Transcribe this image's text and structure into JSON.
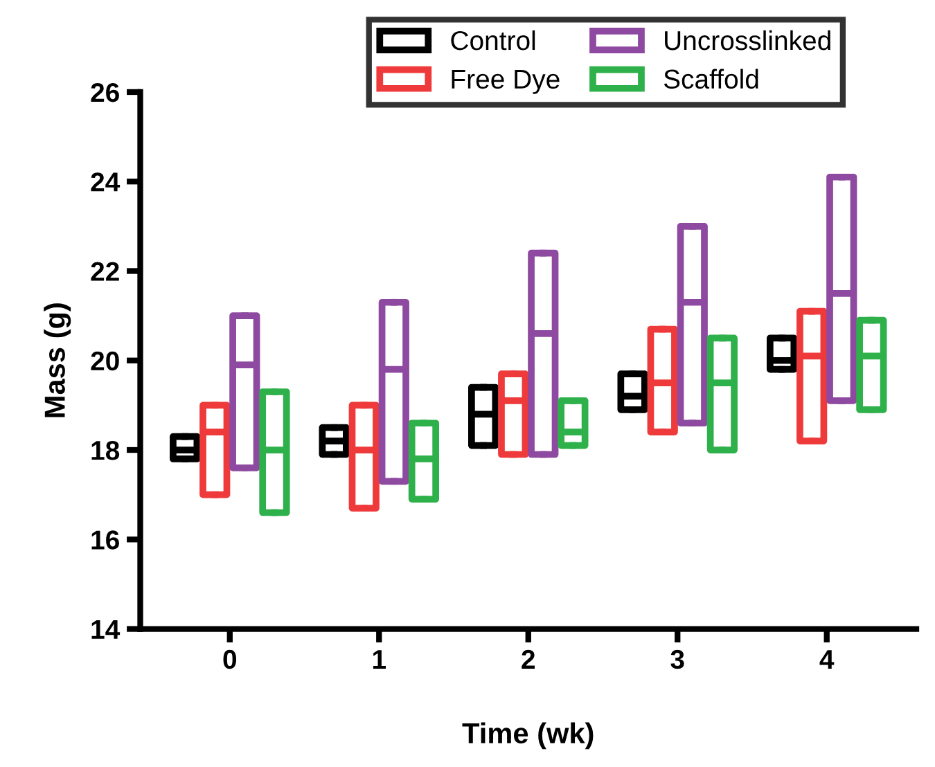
{
  "chart_data": {
    "type": "box",
    "xlabel": "Time (wk)",
    "ylabel": "Mass (g)",
    "categories": [
      "0",
      "1",
      "2",
      "3",
      "4"
    ],
    "ylim": [
      14,
      26
    ],
    "yticks": [
      14,
      16,
      18,
      20,
      22,
      24,
      26
    ],
    "grid": false,
    "legend": "top",
    "series": [
      {
        "name": "Control",
        "color": "#000000",
        "boxes": [
          {
            "low": 17.8,
            "q1": 17.8,
            "median": 18.0,
            "q3": 18.3,
            "high": 18.3
          },
          {
            "low": 17.9,
            "q1": 17.9,
            "median": 18.2,
            "q3": 18.5,
            "high": 18.5
          },
          {
            "low": 18.1,
            "q1": 18.1,
            "median": 18.8,
            "q3": 19.4,
            "high": 19.4
          },
          {
            "low": 18.9,
            "q1": 18.9,
            "median": 19.2,
            "q3": 19.7,
            "high": 19.7
          },
          {
            "low": 19.8,
            "q1": 19.8,
            "median": 20.0,
            "q3": 20.5,
            "high": 20.5
          }
        ]
      },
      {
        "name": "Free Dye",
        "color": "#ee3a3a",
        "boxes": [
          {
            "low": 17.0,
            "q1": 17.0,
            "median": 18.4,
            "q3": 19.0,
            "high": 19.0
          },
          {
            "low": 16.7,
            "q1": 16.7,
            "median": 18.0,
            "q3": 19.0,
            "high": 19.0
          },
          {
            "low": 17.9,
            "q1": 17.9,
            "median": 19.1,
            "q3": 19.7,
            "high": 19.7
          },
          {
            "low": 18.4,
            "q1": 18.4,
            "median": 19.5,
            "q3": 20.7,
            "high": 20.7
          },
          {
            "low": 18.2,
            "q1": 18.2,
            "median": 20.1,
            "q3": 21.1,
            "high": 21.1
          }
        ]
      },
      {
        "name": "Uncrosslinked",
        "color": "#8e4aa0",
        "boxes": [
          {
            "low": 17.6,
            "q1": 17.6,
            "median": 19.9,
            "q3": 21.0,
            "high": 21.0
          },
          {
            "low": 17.3,
            "q1": 17.3,
            "median": 19.8,
            "q3": 21.3,
            "high": 21.3
          },
          {
            "low": 17.9,
            "q1": 17.9,
            "median": 20.6,
            "q3": 22.4,
            "high": 22.4
          },
          {
            "low": 18.6,
            "q1": 18.6,
            "median": 21.3,
            "q3": 23.0,
            "high": 23.0
          },
          {
            "low": 19.1,
            "q1": 19.1,
            "median": 21.5,
            "q3": 24.1,
            "high": 24.1
          }
        ]
      },
      {
        "name": "Scaffold",
        "color": "#2eb04a",
        "boxes": [
          {
            "low": 16.6,
            "q1": 16.6,
            "median": 18.0,
            "q3": 19.3,
            "high": 19.3
          },
          {
            "low": 16.9,
            "q1": 16.9,
            "median": 17.8,
            "q3": 18.6,
            "high": 18.6
          },
          {
            "low": 18.1,
            "q1": 18.1,
            "median": 18.4,
            "q3": 19.1,
            "high": 19.1
          },
          {
            "low": 18.0,
            "q1": 18.0,
            "median": 19.5,
            "q3": 20.5,
            "high": 20.5
          },
          {
            "low": 18.9,
            "q1": 18.9,
            "median": 20.1,
            "q3": 20.9,
            "high": 20.9
          }
        ]
      }
    ]
  }
}
